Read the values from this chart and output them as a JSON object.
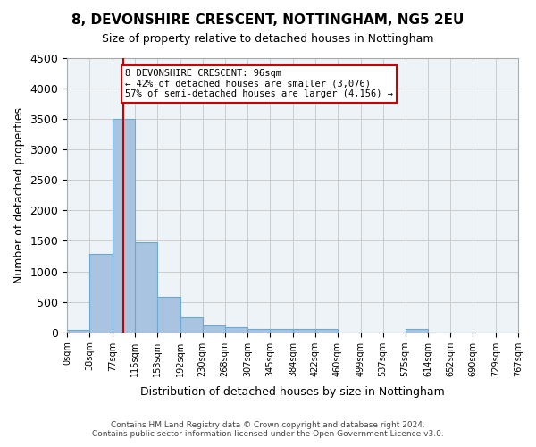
{
  "title": "8, DEVONSHIRE CRESCENT, NOTTINGHAM, NG5 2EU",
  "subtitle": "Size of property relative to detached houses in Nottingham",
  "xlabel": "Distribution of detached houses by size in Nottingham",
  "ylabel": "Number of detached properties",
  "bar_color": "#a8c4e0",
  "bar_edge_color": "#6aaad4",
  "grid_color": "#cccccc",
  "bg_color": "#eef3f8",
  "property_size": 96,
  "red_line_color": "#cc0000",
  "annotation_text": "8 DEVONSHIRE CRESCENT: 96sqm\n← 42% of detached houses are smaller (3,076)\n57% of semi-detached houses are larger (4,156) →",
  "annotation_box_color": "#cc0000",
  "footer_line1": "Contains HM Land Registry data © Crown copyright and database right 2024.",
  "footer_line2": "Contains public sector information licensed under the Open Government Licence v3.0.",
  "bin_edges": [
    0,
    38,
    77,
    115,
    153,
    192,
    230,
    268,
    307,
    345,
    384,
    422,
    460,
    499,
    537,
    575,
    614,
    652,
    690,
    729,
    767
  ],
  "bin_labels": [
    "0sqm",
    "38sqm",
    "77sqm",
    "115sqm",
    "153sqm",
    "192sqm",
    "230sqm",
    "268sqm",
    "307sqm",
    "345sqm",
    "384sqm",
    "422sqm",
    "460sqm",
    "499sqm",
    "537sqm",
    "575sqm",
    "614sqm",
    "652sqm",
    "690sqm",
    "729sqm",
    "767sqm"
  ],
  "bar_heights": [
    40,
    1280,
    3500,
    1480,
    580,
    240,
    110,
    80,
    50,
    50,
    50,
    60,
    0,
    0,
    0,
    60,
    0,
    0,
    0,
    0
  ],
  "ylim": [
    0,
    4500
  ],
  "yticks": [
    0,
    500,
    1000,
    1500,
    2000,
    2500,
    3000,
    3500,
    4000,
    4500
  ]
}
